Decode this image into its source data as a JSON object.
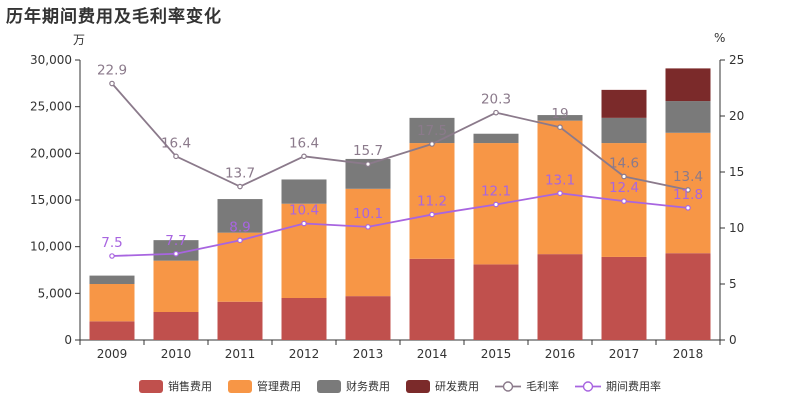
{
  "chart_data": {
    "type": "bar",
    "title": "历年期间费用及毛利率变化",
    "ylabel_left": "万",
    "ylabel_right": "%",
    "categories": [
      "2009",
      "2010",
      "2011",
      "2012",
      "2013",
      "2014",
      "2015",
      "2016",
      "2017",
      "2018"
    ],
    "ylim_left": [
      0,
      30000
    ],
    "yticks_left": [
      "0",
      "5,000",
      "10,000",
      "15,000",
      "20,000",
      "25,000",
      "30,000"
    ],
    "ylim_right": [
      0,
      25
    ],
    "yticks_right": [
      "0",
      "5",
      "10",
      "15",
      "20",
      "25"
    ],
    "series": [
      {
        "name": "销售费用",
        "kind": "bar",
        "color": "#c0504d",
        "values": [
          2000,
          3000,
          4100,
          4500,
          4700,
          8700,
          8100,
          9200,
          8900,
          9300
        ]
      },
      {
        "name": "管理费用",
        "kind": "bar",
        "color": "#f79646",
        "values": [
          4000,
          5500,
          7400,
          10100,
          11500,
          12400,
          13000,
          14300,
          12200,
          12900
        ]
      },
      {
        "name": "财务费用",
        "kind": "bar",
        "color": "#7a7a7a",
        "values": [
          900,
          2200,
          3600,
          2600,
          3200,
          2700,
          1000,
          600,
          2700,
          3400
        ]
      },
      {
        "name": "研发费用",
        "kind": "bar",
        "color": "#7b2a2a",
        "values": [
          0,
          0,
          0,
          0,
          0,
          0,
          0,
          0,
          3000,
          3500
        ]
      },
      {
        "name": "毛利率",
        "kind": "line",
        "axis": "right",
        "color": "#8b7a8b",
        "labelColor": "#8b7a8b",
        "values": [
          22.9,
          16.4,
          13.7,
          16.4,
          15.7,
          17.5,
          20.3,
          19.0,
          14.6,
          13.4
        ],
        "labels": [
          "22.9",
          "16.4",
          "13.7",
          "16.4",
          "15.7",
          "17.5",
          "20.3",
          "19",
          "14.6",
          "13.4"
        ]
      },
      {
        "name": "期间费用率",
        "kind": "line",
        "axis": "right",
        "color": "#a865e0",
        "labelColor": "#a865e0",
        "values": [
          7.5,
          7.7,
          8.9,
          10.4,
          10.1,
          11.2,
          12.1,
          13.1,
          12.4,
          11.8
        ],
        "labels": [
          "7.5",
          "7.7",
          "8.9",
          "10.4",
          "10.1",
          "11.2",
          "12.1",
          "13.1",
          "12.4",
          "11.8"
        ]
      }
    ]
  }
}
